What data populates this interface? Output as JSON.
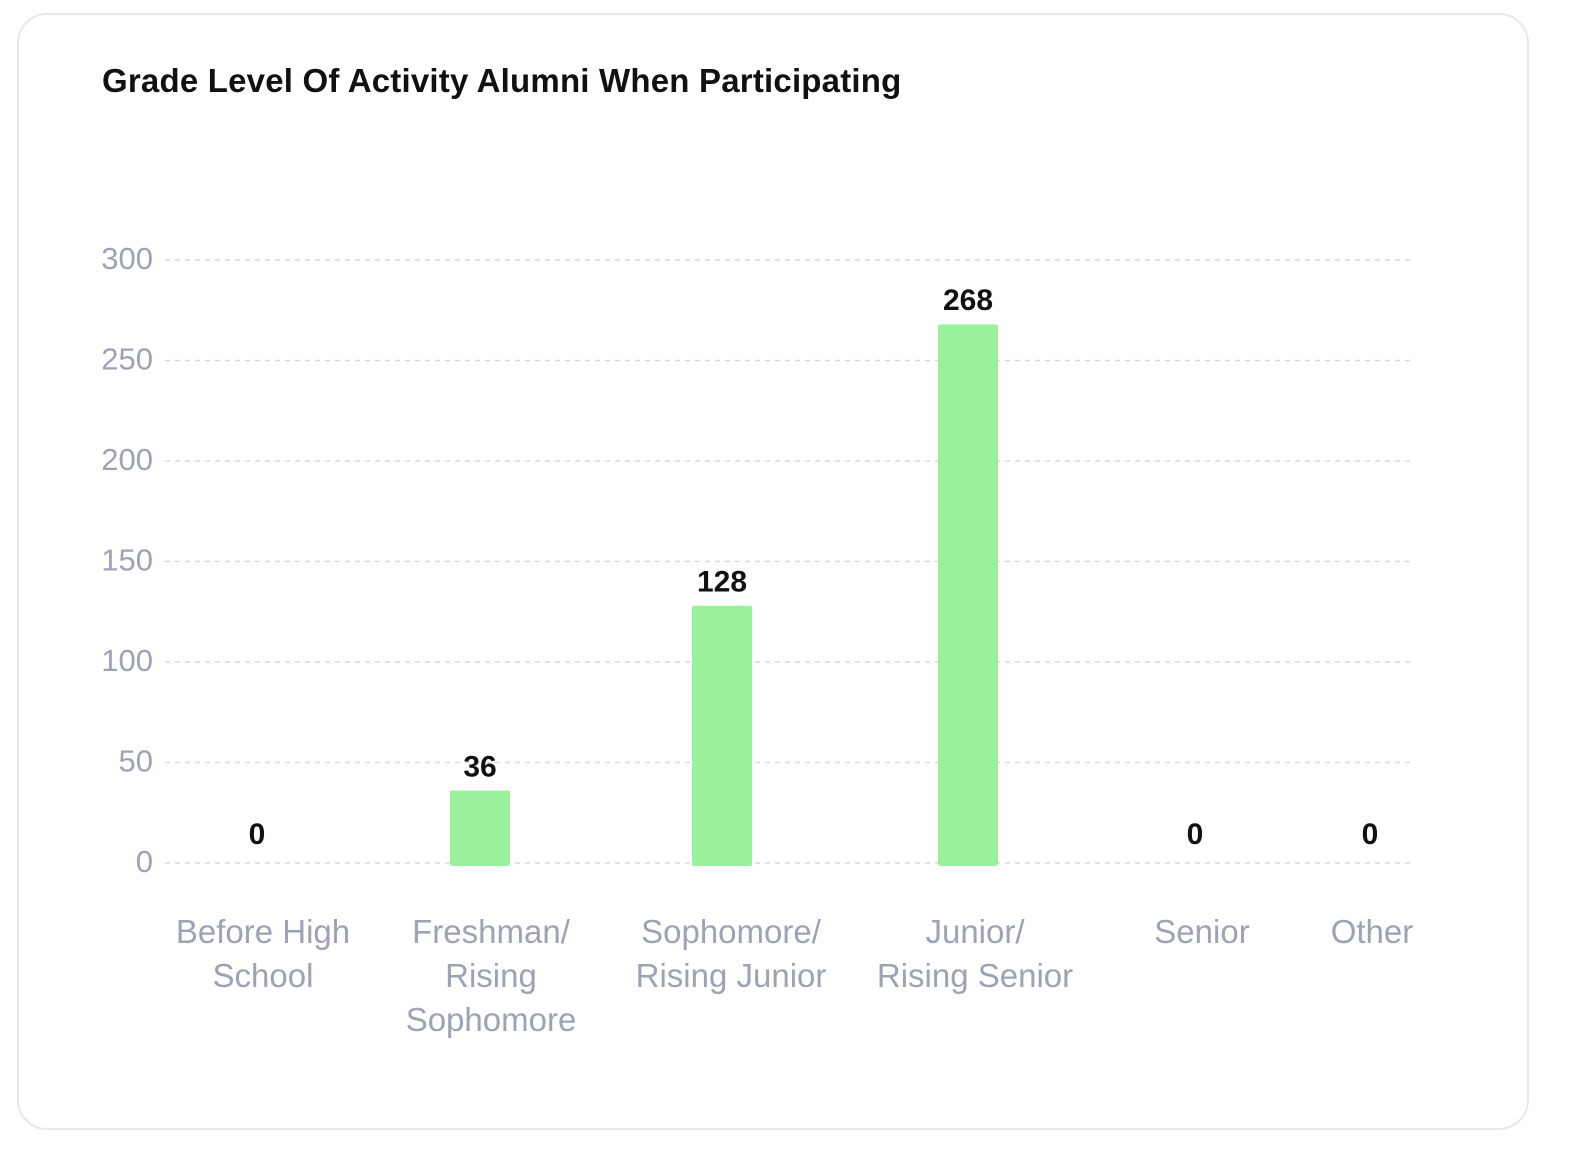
{
  "chart_data": {
    "type": "bar",
    "title": "Grade Level Of Activity Alumni When Participating",
    "xlabel": "",
    "ylabel": "",
    "ylim": [
      0,
      300
    ],
    "yticks": [
      0,
      50,
      100,
      150,
      200,
      250,
      300
    ],
    "grid": true,
    "legend": "none",
    "categories": [
      [
        "Before High",
        "School"
      ],
      [
        "Freshman/",
        "Rising",
        "Sophomore"
      ],
      [
        "Sophomore/",
        "Rising Junior"
      ],
      [
        "Junior/",
        "Rising Senior"
      ],
      [
        "Senior"
      ],
      [
        "Other"
      ]
    ],
    "values": [
      0,
      36,
      128,
      268,
      0,
      0
    ],
    "data_labels": [
      "0",
      "36",
      "128",
      "268",
      "0",
      "0"
    ],
    "colors": {
      "bar": "#99f29b",
      "grid": "#d6d9df",
      "tick_text": "#9da3b4",
      "value_text": "#111111"
    }
  }
}
